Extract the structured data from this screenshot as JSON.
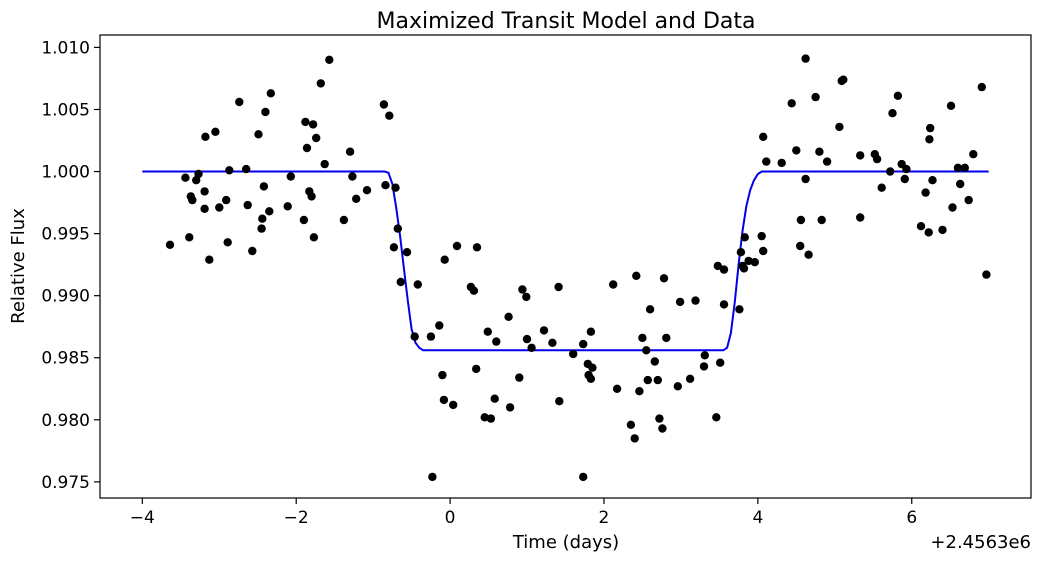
{
  "chart_data": {
    "type": "scatter",
    "title": "Maximized Transit Model and Data",
    "xlabel": "Time (days)",
    "ylabel": "Relative Flux",
    "x_offset_label": "+2.4563e6",
    "xlim": [
      -4.55,
      7.55
    ],
    "ylim": [
      0.9737,
      1.011
    ],
    "x_ticks": [
      -4,
      -2,
      0,
      2,
      4,
      6
    ],
    "x_tick_labels": [
      "−4",
      "−2",
      "0",
      "2",
      "4",
      "6"
    ],
    "y_ticks": [
      0.975,
      0.98,
      0.985,
      0.99,
      0.995,
      1.0,
      1.005,
      1.01
    ],
    "y_tick_labels": [
      "0.975",
      "0.980",
      "0.985",
      "0.990",
      "0.995",
      "1.000",
      "1.005",
      "1.010"
    ],
    "grid": false,
    "series": [
      {
        "kind": "scatter",
        "color": "#000000",
        "points": [
          [
            -3.64,
            0.9941
          ],
          [
            -3.44,
            0.9995
          ],
          [
            -3.39,
            0.9947
          ],
          [
            -3.37,
            0.998
          ],
          [
            -3.35,
            0.9977
          ],
          [
            -3.3,
            0.9993
          ],
          [
            -3.27,
            0.9998
          ],
          [
            -3.19,
            0.9984
          ],
          [
            -3.19,
            0.997
          ],
          [
            -3.18,
            1.0028
          ],
          [
            -3.13,
            0.9929
          ],
          [
            -3.05,
            1.0032
          ],
          [
            -3.0,
            0.9971
          ],
          [
            -2.91,
            0.9977
          ],
          [
            -2.89,
            0.9943
          ],
          [
            -2.87,
            1.0001
          ],
          [
            -2.74,
            1.0056
          ],
          [
            -2.65,
            1.0002
          ],
          [
            -2.63,
            0.9973
          ],
          [
            -2.57,
            0.9936
          ],
          [
            -2.49,
            1.003
          ],
          [
            -2.45,
            0.9954
          ],
          [
            -2.44,
            0.9962
          ],
          [
            -2.42,
            0.9988
          ],
          [
            -2.4,
            1.0048
          ],
          [
            -2.35,
            0.9968
          ],
          [
            -2.33,
            1.0063
          ],
          [
            -2.11,
            0.9972
          ],
          [
            -2.07,
            0.9996
          ],
          [
            -1.9,
            0.9961
          ],
          [
            -1.88,
            1.004
          ],
          [
            -1.86,
            1.0019
          ],
          [
            -1.83,
            0.9984
          ],
          [
            -1.8,
            0.998
          ],
          [
            -1.78,
            1.0038
          ],
          [
            -1.77,
            0.9947
          ],
          [
            -1.74,
            1.0027
          ],
          [
            -1.68,
            1.0071
          ],
          [
            -1.63,
            1.0006
          ],
          [
            -1.57,
            1.009
          ],
          [
            -1.38,
            0.9961
          ],
          [
            -1.3,
            1.0016
          ],
          [
            -1.27,
            0.9996
          ],
          [
            -1.22,
            0.9978
          ],
          [
            -1.08,
            0.9985
          ],
          [
            -0.86,
            1.0054
          ],
          [
            -0.84,
            0.9989
          ],
          [
            -0.79,
            1.0045
          ],
          [
            -0.73,
            0.9939
          ],
          [
            -0.71,
            0.9987
          ],
          [
            -0.68,
            0.9954
          ],
          [
            -0.64,
            0.9911
          ],
          [
            -0.56,
            0.9935
          ],
          [
            -0.46,
            0.9867
          ],
          [
            -0.42,
            0.9909
          ],
          [
            -0.25,
            0.9867
          ],
          [
            -0.23,
            0.9754
          ],
          [
            -0.14,
            0.9876
          ],
          [
            -0.1,
            0.9836
          ],
          [
            -0.08,
            0.9816
          ],
          [
            -0.07,
            0.9929
          ],
          [
            0.04,
            0.9812
          ],
          [
            0.09,
            0.994
          ],
          [
            0.27,
            0.9907
          ],
          [
            0.31,
            0.9904
          ],
          [
            0.34,
            0.9841
          ],
          [
            0.35,
            0.9939
          ],
          [
            0.45,
            0.9802
          ],
          [
            0.49,
            0.9871
          ],
          [
            0.53,
            0.9801
          ],
          [
            0.58,
            0.9817
          ],
          [
            0.6,
            0.9863
          ],
          [
            0.76,
            0.9883
          ],
          [
            0.78,
            0.981
          ],
          [
            0.9,
            0.9834
          ],
          [
            0.94,
            0.9905
          ],
          [
            0.99,
            0.9899
          ],
          [
            1.0,
            0.9865
          ],
          [
            1.06,
            0.9858
          ],
          [
            1.22,
            0.9872
          ],
          [
            1.33,
            0.9862
          ],
          [
            1.41,
            0.9907
          ],
          [
            1.42,
            0.9815
          ],
          [
            1.6,
            0.9853
          ],
          [
            1.73,
            0.9861
          ],
          [
            1.73,
            0.9754
          ],
          [
            1.79,
            0.9845
          ],
          [
            1.8,
            0.9836
          ],
          [
            1.83,
            0.9871
          ],
          [
            1.83,
            0.9833
          ],
          [
            1.85,
            0.9842
          ],
          [
            2.12,
            0.9909
          ],
          [
            2.17,
            0.9825
          ],
          [
            2.35,
            0.9796
          ],
          [
            2.4,
            0.9785
          ],
          [
            2.42,
            0.9916
          ],
          [
            2.46,
            0.9823
          ],
          [
            2.5,
            0.9866
          ],
          [
            2.55,
            0.9856
          ],
          [
            2.57,
            0.9832
          ],
          [
            2.6,
            0.9889
          ],
          [
            2.66,
            0.9847
          ],
          [
            2.7,
            0.9832
          ],
          [
            2.72,
            0.9801
          ],
          [
            2.76,
            0.9793
          ],
          [
            2.78,
            0.9914
          ],
          [
            2.81,
            0.9866
          ],
          [
            2.96,
            0.9827
          ],
          [
            2.99,
            0.9895
          ],
          [
            3.12,
            0.9833
          ],
          [
            3.19,
            0.9896
          ],
          [
            3.3,
            0.9843
          ],
          [
            3.31,
            0.9852
          ],
          [
            3.46,
            0.9802
          ],
          [
            3.48,
            0.9924
          ],
          [
            3.51,
            0.9846
          ],
          [
            3.56,
            0.9921
          ],
          [
            3.56,
            0.9893
          ],
          [
            3.76,
            0.9889
          ],
          [
            3.78,
            0.9935
          ],
          [
            3.8,
            0.9924
          ],
          [
            3.82,
            0.9922
          ],
          [
            3.83,
            0.9947
          ],
          [
            3.88,
            0.9928
          ],
          [
            3.96,
            0.9927
          ],
          [
            4.05,
            0.9948
          ],
          [
            4.07,
            0.9936
          ],
          [
            4.07,
            1.0028
          ],
          [
            4.11,
            1.0008
          ],
          [
            4.31,
            1.0007
          ],
          [
            4.44,
            1.0055
          ],
          [
            4.5,
            1.0017
          ],
          [
            4.55,
            0.994
          ],
          [
            4.56,
            0.9961
          ],
          [
            4.62,
            0.9994
          ],
          [
            4.62,
            1.0091
          ],
          [
            4.66,
            0.9933
          ],
          [
            4.75,
            1.006
          ],
          [
            4.8,
            1.0016
          ],
          [
            4.83,
            0.9961
          ],
          [
            4.9,
            1.0008
          ],
          [
            5.06,
            1.0036
          ],
          [
            5.09,
            1.0073
          ],
          [
            5.11,
            1.0074
          ],
          [
            5.33,
            0.9963
          ],
          [
            5.33,
            1.0013
          ],
          [
            5.52,
            1.0014
          ],
          [
            5.55,
            1.001
          ],
          [
            5.61,
            0.9987
          ],
          [
            5.72,
            1.0
          ],
          [
            5.75,
            1.0047
          ],
          [
            5.82,
            1.0061
          ],
          [
            5.87,
            1.0006
          ],
          [
            5.91,
            0.9994
          ],
          [
            5.93,
            1.0002
          ],
          [
            6.12,
            0.9956
          ],
          [
            6.18,
            0.9983
          ],
          [
            6.22,
            0.9951
          ],
          [
            6.23,
            1.0026
          ],
          [
            6.24,
            1.0035
          ],
          [
            6.27,
            0.9993
          ],
          [
            6.4,
            0.9953
          ],
          [
            6.51,
            1.0053
          ],
          [
            6.53,
            0.9971
          ],
          [
            6.6,
            1.0003
          ],
          [
            6.63,
            0.999
          ],
          [
            6.69,
            1.0003
          ],
          [
            6.74,
            0.9977
          ],
          [
            6.8,
            1.0014
          ],
          [
            6.91,
            1.0068
          ],
          [
            6.97,
            0.9917
          ]
        ]
      },
      {
        "kind": "line",
        "color": "#0000ee",
        "points": [
          [
            -4.0,
            1.0
          ],
          [
            -0.85,
            1.0
          ],
          [
            -0.8,
            0.9999
          ],
          [
            -0.75,
            0.999
          ],
          [
            -0.7,
            0.9971
          ],
          [
            -0.65,
            0.9948
          ],
          [
            -0.6,
            0.9922
          ],
          [
            -0.55,
            0.9896
          ],
          [
            -0.5,
            0.9873
          ],
          [
            -0.45,
            0.9862
          ],
          [
            -0.4,
            0.9858
          ],
          [
            -0.35,
            0.9856
          ],
          [
            -0.3,
            0.9856
          ],
          [
            3.55,
            0.9856
          ],
          [
            3.6,
            0.9858
          ],
          [
            3.65,
            0.987
          ],
          [
            3.7,
            0.9895
          ],
          [
            3.75,
            0.9925
          ],
          [
            3.8,
            0.9952
          ],
          [
            3.85,
            0.9972
          ],
          [
            3.9,
            0.9985
          ],
          [
            3.95,
            0.9993
          ],
          [
            4.0,
            0.9998
          ],
          [
            4.05,
            1.0
          ],
          [
            7.0,
            1.0
          ]
        ]
      }
    ]
  }
}
